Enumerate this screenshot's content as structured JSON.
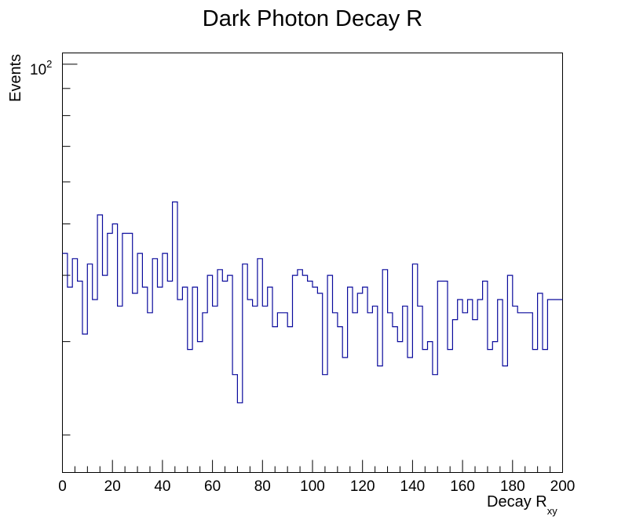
{
  "chart_data": {
    "type": "histogram",
    "title": "Dark Photon Decay R",
    "xlabel": "Decay R",
    "xlabel_subscript": "xy",
    "ylabel": "Events",
    "xlim": [
      0,
      200
    ],
    "ylim": [
      17,
      105
    ],
    "log_y": true,
    "bin_width": 2,
    "x_ticks": [
      0,
      20,
      40,
      60,
      80,
      100,
      120,
      140,
      160,
      180,
      200
    ],
    "y_tick_label": "10",
    "y_tick_label_exp": "2",
    "line_color": "#0a0a9c",
    "counts": [
      44,
      38,
      43,
      39,
      31,
      42,
      36,
      52,
      40,
      48,
      50,
      35,
      48,
      48,
      37,
      44,
      38,
      34,
      43,
      38,
      44,
      39,
      55,
      36,
      38,
      29,
      38,
      30,
      34,
      40,
      35,
      41,
      39,
      40,
      26,
      23,
      42,
      36,
      35,
      43,
      35,
      38,
      32,
      34,
      34,
      32,
      40,
      41,
      40,
      39,
      38,
      37,
      26,
      40,
      34,
      32,
      28,
      38,
      34,
      37,
      38,
      34,
      35,
      27,
      41,
      34,
      32,
      30,
      35,
      28,
      42,
      35,
      29,
      30,
      26,
      39,
      39,
      29,
      33,
      36,
      34,
      36,
      33,
      36,
      39,
      29,
      30,
      36,
      27,
      40,
      35,
      34,
      34,
      34,
      29,
      37,
      29,
      36,
      36,
      36
    ]
  }
}
